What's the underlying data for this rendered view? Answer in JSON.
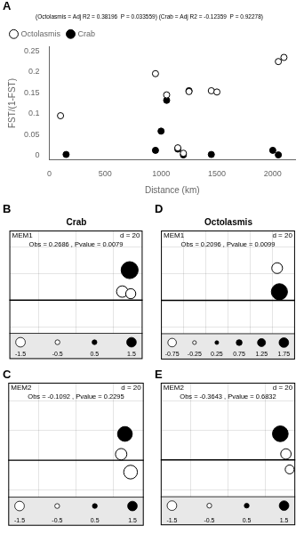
{
  "chart_data": [
    {
      "type": "scatter",
      "panel": "A",
      "title": "(Octolasmis = Adj R2 = 0.38196  P = 0.033559) (Crab = Adj R2 = -0.12359  P = 0.92278)",
      "xlabel": "Distance (km)",
      "ylabel": "FST/(1-FST)",
      "series": [
        {
          "name": "Octolasmis",
          "marker": "open",
          "color": "#000000",
          "x": [
            100,
            950,
            1050,
            1150,
            1200,
            1250,
            1450,
            1500,
            2050,
            2100
          ],
          "values": [
            0.095,
            0.196,
            0.145,
            0.018,
            0.005,
            0.153,
            0.155,
            0.152,
            0.225,
            0.235
          ]
        },
        {
          "name": "Crab",
          "marker": "filled",
          "color": "#000000",
          "x": [
            150,
            950,
            1000,
            1050,
            1150,
            1200,
            1250,
            1450,
            2000,
            2050
          ],
          "values": [
            0.002,
            0.012,
            0.058,
            0.132,
            0.015,
            0.001,
            0.155,
            0.002,
            0.012,
            0.001
          ]
        }
      ],
      "xlim": [
        0,
        2200
      ],
      "xticks": [
        0,
        500,
        1000,
        1500,
        2000
      ],
      "ylim": [
        -0.01,
        0.26
      ],
      "yticks": [
        0,
        0.05,
        0.1,
        0.15,
        0.2,
        0.25
      ],
      "legend": "upper left",
      "grid": false
    },
    {
      "type": "bubble",
      "panel": "B",
      "title": "Crab",
      "mem_label": "MEM1",
      "d_label": "d = 20",
      "obs_text": "Obs = 0.2686 , Pvalue = 0.0079",
      "series": [
        {
          "marker": "filled",
          "color": "#000000",
          "x": [
            1.45
          ],
          "values": [
            0.28
          ],
          "sizes": [
            200
          ]
        },
        {
          "marker": "open",
          "color": "#000000",
          "x": [
            1.25,
            1.48
          ],
          "values": [
            0.08,
            0.06
          ],
          "sizes": [
            90,
            70
          ]
        }
      ],
      "size_legend": [
        {
          "value": -1.5,
          "marker": "open",
          "size": 1.8
        },
        {
          "value": -0.5,
          "marker": "open",
          "size": 0.9
        },
        {
          "value": 0.5,
          "marker": "filled",
          "size": 0.9
        },
        {
          "value": 1.5,
          "marker": "filled",
          "size": 1.8
        }
      ],
      "hline": 0,
      "xlim": [
        -1.8,
        1.8
      ],
      "xticks": [
        -1,
        0,
        1
      ],
      "ylim": [
        -0.55,
        0.65
      ],
      "yticks": [
        -0.25,
        0,
        0.25,
        0.5
      ],
      "grid": true,
      "tick_labels": false
    },
    {
      "type": "bubble",
      "panel": "C",
      "mem_label": "MEM2",
      "d_label": "d = 20",
      "obs_text": "Obs = -0.1092 , Pvalue = 0.2295",
      "series": [
        {
          "marker": "filled",
          "color": "#000000",
          "x": [
            1.3
          ],
          "values": [
            0.22
          ],
          "sizes": [
            150
          ]
        },
        {
          "marker": "open",
          "color": "#000000",
          "x": [
            1.2,
            1.45
          ],
          "values": [
            0.05,
            -0.1
          ],
          "sizes": [
            90,
            130
          ]
        }
      ],
      "size_legend": [
        {
          "value": -1.5,
          "marker": "open",
          "size": 1.8
        },
        {
          "value": -0.5,
          "marker": "open",
          "size": 0.9
        },
        {
          "value": 0.5,
          "marker": "filled",
          "size": 0.9
        },
        {
          "value": 1.5,
          "marker": "filled",
          "size": 1.8
        }
      ],
      "hline": 0,
      "xlim": [
        -1.8,
        1.8
      ],
      "xticks": [
        -1,
        0,
        1
      ],
      "ylim": [
        -0.55,
        0.65
      ],
      "yticks": [
        -0.25,
        0,
        0.25,
        0.5
      ],
      "grid": true,
      "tick_labels": false
    },
    {
      "type": "bubble",
      "panel": "D",
      "title": "Octolasmis",
      "mem_label": "MEM1",
      "d_label": "d = 20",
      "obs_text": "Obs = 0.2096 , Pvalue = 0.0099",
      "series": [
        {
          "marker": "open",
          "color": "#000000",
          "x": [
            1.6
          ],
          "values": [
            0.3
          ],
          "sizes": [
            80
          ]
        },
        {
          "marker": "filled",
          "color": "#000000",
          "x": [
            1.65
          ],
          "values": [
            0.08
          ],
          "sizes": [
            180
          ]
        }
      ],
      "size_legend": [
        {
          "value": -0.75,
          "marker": "open",
          "size": 1.6
        },
        {
          "value": -0.25,
          "marker": "open",
          "size": 0.7
        },
        {
          "value": 0.25,
          "marker": "filled",
          "size": 0.7
        },
        {
          "value": 0.75,
          "marker": "filled",
          "size": 1.1
        },
        {
          "value": 1.25,
          "marker": "filled",
          "size": 1.5
        },
        {
          "value": 1.75,
          "marker": "filled",
          "size": 1.8
        }
      ],
      "hline": 0,
      "xlim": [
        -1.0,
        2.0
      ],
      "xticks": [
        -0.5,
        0,
        0.5,
        1,
        1.5
      ],
      "ylim": [
        -0.55,
        0.65
      ],
      "yticks": [
        -0.25,
        0,
        0.25,
        0.5
      ],
      "grid": true,
      "tick_labels": false
    },
    {
      "type": "bubble",
      "panel": "E",
      "mem_label": "MEM2",
      "d_label": "d = 20",
      "obs_text": "Obs = -0.3643 , Pvalue = 0.6832",
      "series": [
        {
          "marker": "filled",
          "color": "#000000",
          "x": [
            1.4
          ],
          "values": [
            0.22
          ],
          "sizes": [
            170
          ]
        },
        {
          "marker": "open",
          "color": "#000000",
          "x": [
            1.55,
            1.65
          ],
          "values": [
            0.05,
            -0.08
          ],
          "sizes": [
            75,
            55
          ]
        }
      ],
      "size_legend": [
        {
          "value": -1.5,
          "marker": "open",
          "size": 1.8
        },
        {
          "value": -0.5,
          "marker": "open",
          "size": 0.9
        },
        {
          "value": 0.5,
          "marker": "filled",
          "size": 0.9
        },
        {
          "value": 1.5,
          "marker": "filled",
          "size": 1.8
        }
      ],
      "hline": 0,
      "xlim": [
        -1.8,
        1.8
      ],
      "xticks": [
        -1,
        0,
        1
      ],
      "ylim": [
        -0.55,
        0.65
      ],
      "yticks": [
        -0.25,
        0,
        0.25,
        0.5
      ],
      "grid": true,
      "tick_labels": false
    }
  ]
}
